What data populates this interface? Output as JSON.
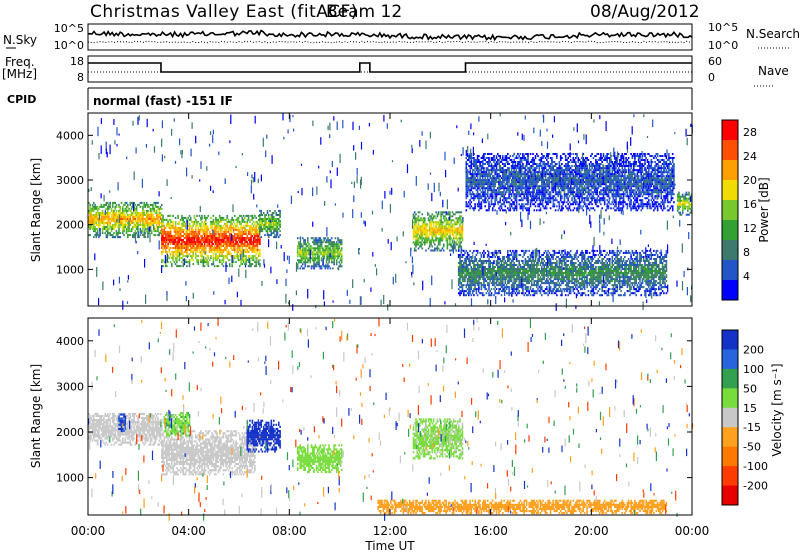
{
  "header": {
    "station": "Christmas Valley East (fitACF)",
    "beam": "Beam 12",
    "date": "08/Aug/2012"
  },
  "mini_panels": {
    "nsky": {
      "label": "N.Sky",
      "ticks": [
        "10^5",
        "10^0"
      ],
      "right_label": "N.Search",
      "right_ticks": [
        "10^5",
        "10^0"
      ]
    },
    "freq": {
      "label_line1": "Freq.",
      "label_line2": "[MHz]",
      "ticks": [
        "18",
        "8"
      ],
      "right_label": "Nave",
      "right_ticks": [
        "60",
        "0"
      ]
    },
    "cpid": {
      "label": "CPID",
      "text": "normal (fast) -151 IF"
    }
  },
  "time_axis": {
    "label": "Time UT",
    "ticks": [
      "00:00",
      "04:00",
      "08:00",
      "12:00",
      "16:00",
      "20:00",
      "00:00"
    ]
  },
  "power_panel": {
    "ylabel": "Slant Range [km]",
    "yticks": [
      "1000",
      "2000",
      "3000",
      "4000"
    ],
    "colorbar_label": "Power [dB]",
    "colorbar_ticks": [
      "4",
      "8",
      "12",
      "16",
      "20",
      "24",
      "28"
    ]
  },
  "velocity_panel": {
    "ylabel": "Slant Range [km]",
    "yticks": [
      "1000",
      "2000",
      "3000",
      "4000"
    ],
    "colorbar_label": "Velocity [m s⁻¹]",
    "colorbar_ticks": [
      "200",
      "100",
      "50",
      "15",
      "-15",
      "-50",
      "-100",
      "-200"
    ]
  },
  "chart_data": [
    {
      "type": "heatmap",
      "title": "Christmas Valley East (fitACF) Beam 12 08/Aug/2012",
      "xlabel": "Time UT",
      "ylabel": "Slant Range [km]",
      "x_range_hours": [
        0,
        24
      ],
      "y_range_km": [
        180,
        4500
      ],
      "colorbar": {
        "label": "Power [dB]",
        "range": [
          0,
          30
        ],
        "ticks": [
          4,
          8,
          12,
          16,
          20,
          24,
          28
        ],
        "colors": [
          "#0000ff",
          "#2255c8",
          "#3c7a6e",
          "#32a032",
          "#78c82d",
          "#f0dc00",
          "#ffa000",
          "#ff5000",
          "#ff0000"
        ]
      },
      "echo_bands": [
        {
          "t": [
            0.0,
            2.9
          ],
          "range_km": [
            1700,
            2500
          ],
          "peak_db": 22
        },
        {
          "t": [
            2.9,
            6.8
          ],
          "range_km": [
            1050,
            2200
          ],
          "peak_db": 28
        },
        {
          "t": [
            6.8,
            7.6
          ],
          "range_km": [
            1700,
            2300
          ],
          "peak_db": 16
        },
        {
          "t": [
            8.3,
            10.1
          ],
          "range_km": [
            1000,
            1700
          ],
          "peak_db": 16
        },
        {
          "t": [
            12.9,
            14.9
          ],
          "range_km": [
            1400,
            2300
          ],
          "peak_db": 20
        },
        {
          "t": [
            14.7,
            23.0
          ],
          "range_km": [
            400,
            1400
          ],
          "peak_db": 10
        },
        {
          "t": [
            15.0,
            23.3
          ],
          "range_km": [
            2300,
            3600
          ],
          "peak_db": 6
        },
        {
          "t": [
            23.4,
            24.0
          ],
          "range_km": [
            2200,
            2700
          ],
          "peak_db": 18
        }
      ]
    },
    {
      "type": "heatmap",
      "title": "Christmas Valley East (fitACF) Beam 12 08/Aug/2012",
      "xlabel": "Time UT",
      "ylabel": "Slant Range [km]",
      "x_range_hours": [
        0,
        24
      ],
      "y_range_km": [
        180,
        4500
      ],
      "colorbar": {
        "label": "Velocity [m s⁻¹]",
        "range": [
          -250,
          250
        ],
        "ticks": [
          200,
          100,
          50,
          15,
          -15,
          -50,
          -100,
          -200
        ],
        "colors": [
          "#1432c8",
          "#2864dc",
          "#32a050",
          "#78dc3c",
          "#c8c8c8",
          "#ffa01e",
          "#ff7800",
          "#ff3c00",
          "#e60000"
        ]
      },
      "echo_bands": [
        {
          "t": [
            0.0,
            2.9
          ],
          "range_km": [
            1700,
            2400
          ],
          "velocity": 0
        },
        {
          "t": [
            1.2,
            1.5
          ],
          "range_km": [
            2000,
            2400
          ],
          "velocity": 200
        },
        {
          "t": [
            2.9,
            6.6
          ],
          "range_km": [
            1050,
            2000
          ],
          "velocity": 0
        },
        {
          "t": [
            3.0,
            4.0
          ],
          "range_km": [
            1900,
            2400
          ],
          "velocity": 70
        },
        {
          "t": [
            6.3,
            7.6
          ],
          "range_km": [
            1550,
            2250
          ],
          "velocity": 220
        },
        {
          "t": [
            8.3,
            10.1
          ],
          "range_km": [
            1100,
            1700
          ],
          "velocity": 60
        },
        {
          "t": [
            12.9,
            14.9
          ],
          "range_km": [
            1400,
            2300
          ],
          "velocity": 40
        },
        {
          "t": [
            11.5,
            23.0
          ],
          "range_km": [
            200,
            500
          ],
          "velocity": -60
        }
      ]
    }
  ]
}
